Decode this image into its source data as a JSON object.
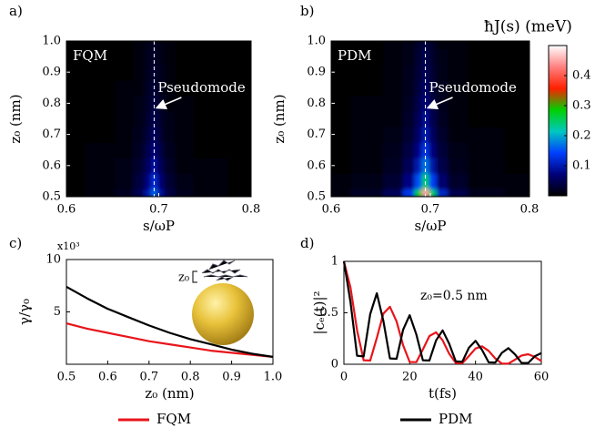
{
  "chart_data": [
    {
      "type": "heatmap",
      "label": "a)",
      "xlabel": "s/ωP",
      "ylabel": "z₀ (nm)",
      "annotations": [
        "FQM",
        "Pseudomode"
      ],
      "xlim": [
        0.6,
        0.8
      ],
      "xticks": [
        0.6,
        0.7,
        0.8
      ],
      "ylim": [
        0.5,
        1.0
      ],
      "yticks": [
        0.5,
        0.6,
        0.7,
        0.8,
        0.9,
        {
          "value": 1.0,
          "label": "1.0"
        }
      ],
      "clim": [
        0,
        0.5
      ],
      "colormap": [
        "#000000",
        "#00007a",
        "#0040ff",
        "#00c8c0",
        "#00d000",
        "#ff2000",
        "#ff8080",
        "#ffffff"
      ],
      "x": [
        0.6,
        0.64,
        0.665,
        0.68,
        0.688,
        0.695,
        0.702,
        0.71,
        0.725,
        0.75,
        0.8
      ],
      "y": [
        0.5,
        0.55,
        0.6,
        0.65,
        0.7,
        0.75,
        0.8,
        0.85,
        0.9,
        0.95,
        1.0
      ],
      "z": [
        [
          0.003,
          0.008,
          0.019,
          0.048,
          0.096,
          0.16,
          0.088,
          0.04,
          0.016,
          0.006,
          0.003
        ],
        [
          0.002,
          0.006,
          0.014,
          0.036,
          0.072,
          0.12,
          0.066,
          0.03,
          0.012,
          0.005,
          0.002
        ],
        [
          0.002,
          0.005,
          0.011,
          0.027,
          0.054,
          0.09,
          0.05,
          0.023,
          0.009,
          0.004,
          0.002
        ],
        [
          0.001,
          0.004,
          0.008,
          0.021,
          0.042,
          0.07,
          0.039,
          0.018,
          0.007,
          0.003,
          0.001
        ],
        [
          0.001,
          0.003,
          0.007,
          0.017,
          0.033,
          0.055,
          0.03,
          0.014,
          0.006,
          0.002,
          0.001
        ],
        [
          0.001,
          0.002,
          0.005,
          0.014,
          0.027,
          0.045,
          0.025,
          0.011,
          0.005,
          0.002,
          0.001
        ],
        [
          0.001,
          0.002,
          0.005,
          0.011,
          0.023,
          0.038,
          0.021,
          0.01,
          0.004,
          0.002,
          0.001
        ],
        [
          0.001,
          0.002,
          0.004,
          0.01,
          0.019,
          0.032,
          0.018,
          0.008,
          0.003,
          0.001,
          0.001
        ],
        [
          0.001,
          0.001,
          0.003,
          0.008,
          0.017,
          0.028,
          0.015,
          0.007,
          0.003,
          0.001,
          0.001
        ],
        [
          0,
          0.001,
          0.003,
          0.008,
          0.015,
          0.025,
          0.014,
          0.006,
          0.003,
          0.001,
          0
        ],
        [
          0,
          0.001,
          0.003,
          0.007,
          0.013,
          0.022,
          0.012,
          0.006,
          0.002,
          0.001,
          0
        ]
      ]
    },
    {
      "type": "heatmap",
      "label": "b)",
      "xlabel": "s/ωP",
      "ylabel": "z₀ (nm)",
      "annotations": [
        "PDM",
        "Pseudomode"
      ],
      "colorbar_label": "ħJ(s) (meV)",
      "cticks": [
        0.1,
        0.2,
        0.3,
        0.4
      ],
      "xlim": [
        0.6,
        0.8
      ],
      "xticks": [
        0.6,
        0.7,
        0.8
      ],
      "ylim": [
        0.5,
        1.0
      ],
      "yticks": [
        0.5,
        0.6,
        0.7,
        0.8,
        0.9,
        {
          "value": 1.0,
          "label": "1.0"
        }
      ],
      "clim": [
        0,
        0.5
      ],
      "colormap": [
        "#000000",
        "#00007a",
        "#0040ff",
        "#00c8c0",
        "#00d000",
        "#ff2000",
        "#ff8080",
        "#ffffff"
      ],
      "x": [
        0.6,
        0.64,
        0.665,
        0.68,
        0.688,
        0.695,
        0.702,
        0.71,
        0.725,
        0.75,
        0.8
      ],
      "y": [
        0.5,
        0.55,
        0.6,
        0.65,
        0.7,
        0.75,
        0.8,
        0.85,
        0.9,
        0.95,
        1.0
      ],
      "z": [
        [
          0.009,
          0.023,
          0.054,
          0.135,
          0.27,
          0.45,
          0.248,
          0.113,
          0.045,
          0.018,
          0.009
        ],
        [
          0.005,
          0.013,
          0.03,
          0.075,
          0.15,
          0.25,
          0.138,
          0.063,
          0.025,
          0.01,
          0.005
        ],
        [
          0.003,
          0.009,
          0.02,
          0.051,
          0.102,
          0.17,
          0.094,
          0.043,
          0.017,
          0.007,
          0.003
        ],
        [
          0.003,
          0.007,
          0.016,
          0.039,
          0.078,
          0.13,
          0.072,
          0.033,
          0.013,
          0.005,
          0.003
        ],
        [
          0.002,
          0.005,
          0.012,
          0.03,
          0.06,
          0.1,
          0.055,
          0.025,
          0.01,
          0.004,
          0.002
        ],
        [
          0.002,
          0.004,
          0.01,
          0.026,
          0.051,
          0.085,
          0.047,
          0.021,
          0.009,
          0.003,
          0.002
        ],
        [
          0.001,
          0.004,
          0.008,
          0.021,
          0.042,
          0.07,
          0.039,
          0.018,
          0.007,
          0.003,
          0.001
        ],
        [
          0.001,
          0.003,
          0.007,
          0.018,
          0.036,
          0.06,
          0.033,
          0.015,
          0.006,
          0.002,
          0.001
        ],
        [
          0.001,
          0.003,
          0.006,
          0.016,
          0.031,
          0.052,
          0.029,
          0.013,
          0.005,
          0.002,
          0.001
        ],
        [
          0.001,
          0.002,
          0.006,
          0.014,
          0.028,
          0.046,
          0.025,
          0.012,
          0.005,
          0.002,
          0.001
        ],
        [
          0.001,
          0.002,
          0.005,
          0.012,
          0.024,
          0.04,
          0.022,
          0.01,
          0.004,
          0.002,
          0.001
        ]
      ]
    },
    {
      "type": "line",
      "label": "c)",
      "xlabel": "z₀ (nm)",
      "ylabel": "γ/γ₀",
      "y_multiplier": "x10³",
      "inset_label": "z₀",
      "xlim": [
        0.5,
        1.0
      ],
      "xticks": [
        0.5,
        0.6,
        0.7,
        0.8,
        0.9,
        {
          "value": 1.0,
          "label": "1.0"
        }
      ],
      "ylim": [
        0,
        10
      ],
      "yticks": [
        5,
        10
      ],
      "x": [
        0.5,
        0.55,
        0.6,
        0.65,
        0.7,
        0.75,
        0.8,
        0.85,
        0.9,
        0.95,
        1.0
      ],
      "series": [
        {
          "name": "FQM",
          "color": "#e8141b",
          "values": [
            3.9,
            3.4,
            3.0,
            2.6,
            2.2,
            1.9,
            1.6,
            1.3,
            1.1,
            0.9,
            0.7
          ]
        },
        {
          "name": "PDM",
          "color": "#000000",
          "values": [
            7.4,
            6.3,
            5.3,
            4.5,
            3.7,
            3.0,
            2.4,
            1.9,
            1.4,
            1.0,
            0.7
          ]
        }
      ]
    },
    {
      "type": "line",
      "label": "d)",
      "xlabel": "t(fs)",
      "ylabel": "|cₑ(t)|²",
      "annotation": "z₀=0.5 nm",
      "xlim": [
        0,
        60
      ],
      "xticks": [
        0,
        20,
        40,
        60
      ],
      "ylim": [
        0,
        1
      ],
      "yticks": [
        0,
        0.5,
        1
      ],
      "x": [
        0,
        2,
        4,
        6,
        8,
        10,
        12,
        14,
        16,
        18,
        20,
        22,
        24,
        26,
        28,
        30,
        32,
        34,
        36,
        38,
        40,
        42,
        44,
        46,
        48,
        50,
        52,
        54,
        56,
        58,
        60
      ],
      "series": [
        {
          "color": "#e8141b",
          "values": [
            1,
            0.747,
            0.329,
            0.039,
            0.036,
            0.256,
            0.493,
            0.558,
            0.417,
            0.184,
            0.022,
            0.02,
            0.143,
            0.274,
            0.311,
            0.233,
            0.103,
            0.012,
            0.011,
            0.08,
            0.153,
            0.174,
            0.13,
            0.057,
            0.007,
            0.006,
            0.045,
            0.085,
            0.097,
            0.072,
            0.032
          ]
        },
        {
          "color": "#000000",
          "values": [
            1,
            0.607,
            0.082,
            0.076,
            0.487,
            0.69,
            0.42,
            0.057,
            0.053,
            0.336,
            0.477,
            0.29,
            0.039,
            0.036,
            0.232,
            0.329,
            0.2,
            0.027,
            0.025,
            0.16,
            0.227,
            0.138,
            0.019,
            0.017,
            0.111,
            0.157,
            0.096,
            0.013,
            0.012,
            0.077,
            0.108
          ]
        }
      ]
    }
  ]
}
